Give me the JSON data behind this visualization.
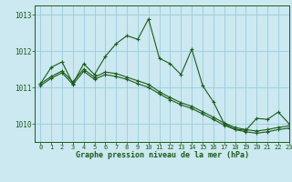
{
  "title": "Graphe pression niveau de la mer (hPa)",
  "bg_color": "#cce8f0",
  "grid_color": "#99ccdd",
  "line_color": "#1a5c1a",
  "xlim": [
    -0.5,
    23
  ],
  "ylim": [
    1009.5,
    1013.25
  ],
  "yticks": [
    1010,
    1011,
    1012,
    1013
  ],
  "xticks": [
    0,
    1,
    2,
    3,
    4,
    5,
    6,
    7,
    8,
    9,
    10,
    11,
    12,
    13,
    14,
    15,
    16,
    17,
    18,
    19,
    20,
    21,
    22,
    23
  ],
  "series": [
    [
      1011.1,
      1011.55,
      1011.7,
      1011.1,
      1011.65,
      1011.35,
      1011.85,
      1012.2,
      1012.42,
      1012.32,
      1012.88,
      1011.8,
      1011.65,
      1011.35,
      1012.05,
      1011.05,
      1010.6,
      1010.0,
      1009.85,
      1009.82,
      1010.15,
      1010.12,
      1010.32,
      1010.0
    ],
    [
      1011.1,
      1011.3,
      1011.45,
      1011.15,
      1011.5,
      1011.28,
      1011.42,
      1011.38,
      1011.28,
      1011.18,
      1011.08,
      1010.88,
      1010.72,
      1010.58,
      1010.48,
      1010.33,
      1010.18,
      1010.02,
      1009.9,
      1009.84,
      1009.8,
      1009.84,
      1009.9,
      1009.94
    ],
    [
      1011.05,
      1011.25,
      1011.4,
      1011.08,
      1011.44,
      1011.22,
      1011.35,
      1011.3,
      1011.22,
      1011.1,
      1011.0,
      1010.82,
      1010.66,
      1010.52,
      1010.42,
      1010.27,
      1010.12,
      1009.96,
      1009.84,
      1009.78,
      1009.74,
      1009.78,
      1009.84,
      1009.88
    ]
  ]
}
